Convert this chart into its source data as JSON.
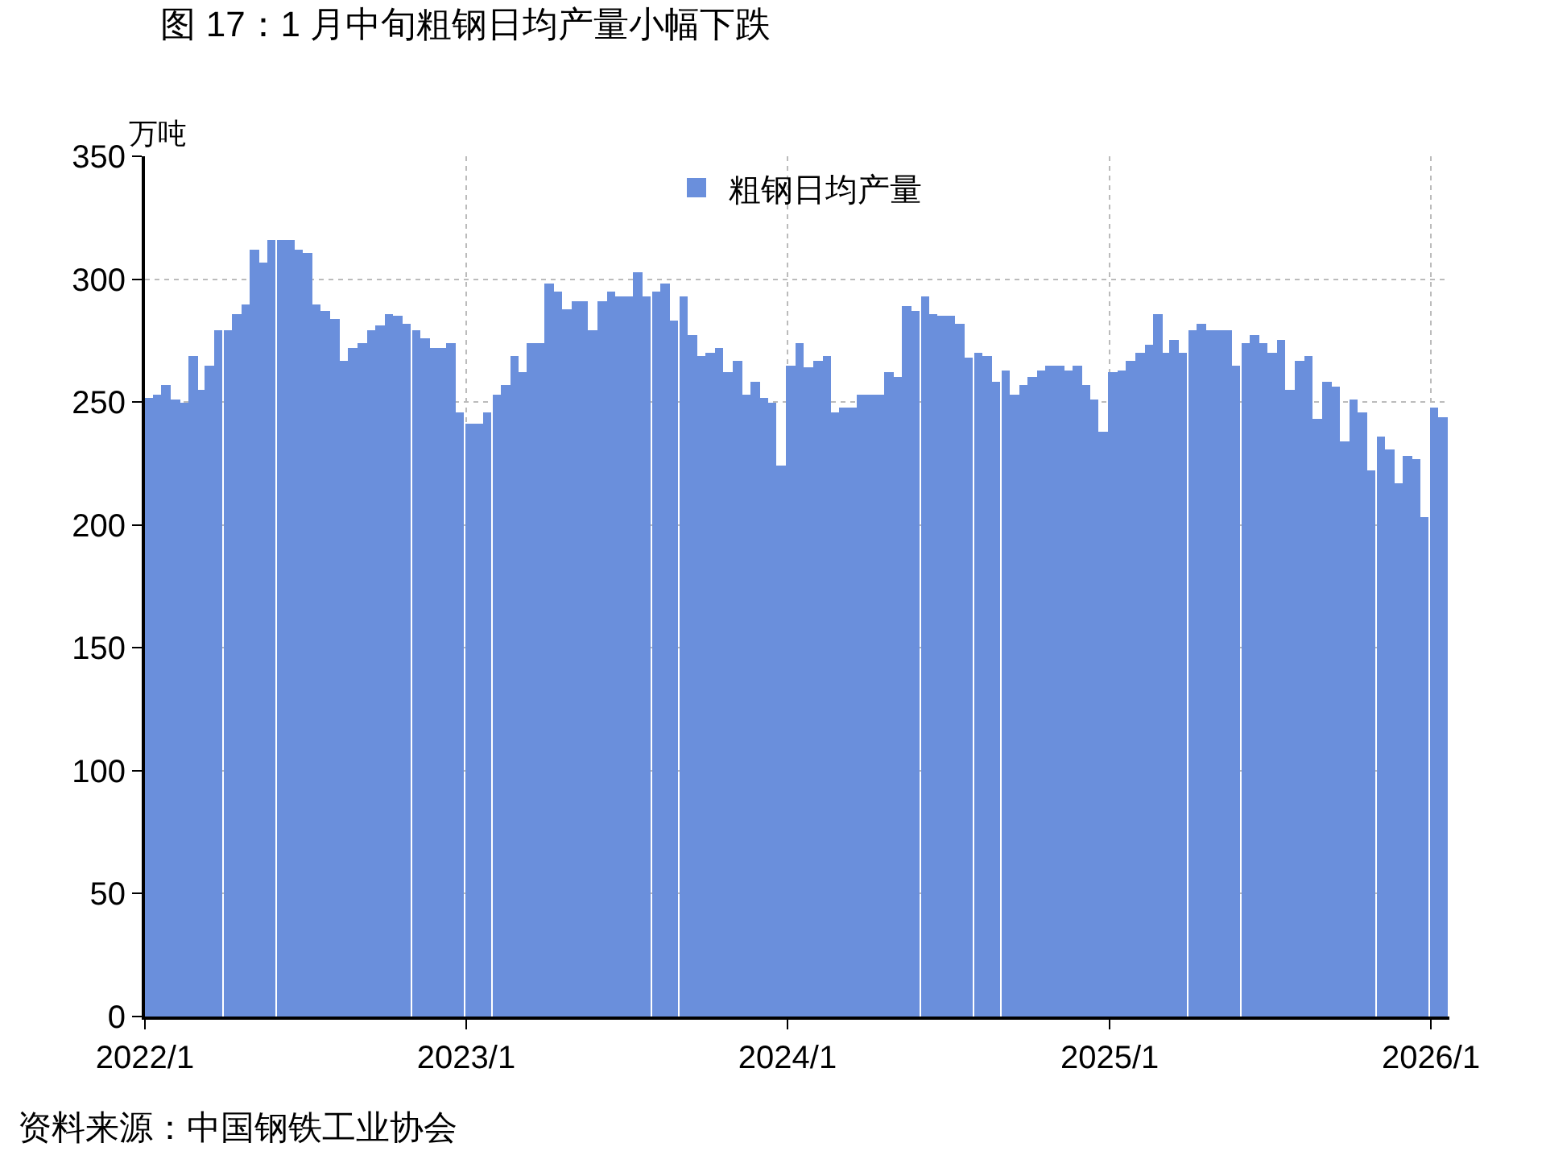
{
  "chart_data": {
    "type": "bar",
    "title": "图 17：1 月中旬粗钢日均产量小幅下跌",
    "ylabel": "万吨",
    "legend": "top",
    "grid": true,
    "annotations": [
      "资料来源：中国钢铁工业协会"
    ],
    "xlim": [
      "2022-01-01",
      "2026-01-22"
    ],
    "xticks": [
      {
        "value": "2022-01-01",
        "label": "2022/1"
      },
      {
        "value": "2023-01-01",
        "label": "2023/1"
      },
      {
        "value": "2024-01-01",
        "label": "2024/1"
      },
      {
        "value": "2025-01-01",
        "label": "2025/1"
      },
      {
        "value": "2026-01-01",
        "label": "2026/1"
      }
    ],
    "ylim": [
      0,
      350
    ],
    "yticks": [
      0,
      50,
      100,
      150,
      200,
      250,
      300,
      350
    ],
    "x": [
      "2022-01-05",
      "2022-01-15",
      "2022-01-25",
      "2022-02-05",
      "2022-02-15",
      "2022-02-25",
      "2022-03-05",
      "2022-03-15",
      "2022-03-25",
      "2022-04-05",
      "2022-04-15",
      "2022-04-25",
      "2022-05-05",
      "2022-05-15",
      "2022-05-25",
      "2022-06-05",
      "2022-06-15",
      "2022-06-25",
      "2022-07-05",
      "2022-07-15",
      "2022-07-25",
      "2022-08-05",
      "2022-08-15",
      "2022-08-25",
      "2022-09-05",
      "2022-09-15",
      "2022-09-25",
      "2022-10-05",
      "2022-10-15",
      "2022-10-25",
      "2022-11-05",
      "2022-11-15",
      "2022-11-25",
      "2022-12-05",
      "2022-12-15",
      "2022-12-25",
      "2023-01-05",
      "2023-01-15",
      "2023-01-25",
      "2023-02-05",
      "2023-02-15",
      "2023-02-25",
      "2023-03-05",
      "2023-03-15",
      "2023-03-25",
      "2023-04-05",
      "2023-04-15",
      "2023-04-25",
      "2023-05-05",
      "2023-05-15",
      "2023-05-25",
      "2023-06-05",
      "2023-06-15",
      "2023-06-25",
      "2023-07-05",
      "2023-07-15",
      "2023-07-25",
      "2023-08-05",
      "2023-08-15",
      "2023-08-25",
      "2023-09-05",
      "2023-09-15",
      "2023-09-25",
      "2023-10-05",
      "2023-10-15",
      "2023-10-25",
      "2023-11-05",
      "2023-11-15",
      "2023-11-25",
      "2023-12-05",
      "2023-12-15",
      "2023-12-25",
      "2024-01-05",
      "2024-01-15",
      "2024-01-25",
      "2024-02-05",
      "2024-02-15",
      "2024-02-25",
      "2024-03-05",
      "2024-03-15",
      "2024-03-25",
      "2024-04-05",
      "2024-04-15",
      "2024-04-25",
      "2024-05-05",
      "2024-05-15",
      "2024-05-25",
      "2024-06-05",
      "2024-06-15",
      "2024-06-25",
      "2024-07-05",
      "2024-07-15",
      "2024-07-25",
      "2024-08-05",
      "2024-08-15",
      "2024-08-25",
      "2024-09-05",
      "2024-09-15",
      "2024-09-25",
      "2024-10-05",
      "2024-10-15",
      "2024-10-25",
      "2024-11-05",
      "2024-11-15",
      "2024-11-25",
      "2024-12-05",
      "2024-12-15",
      "2024-12-25",
      "2025-01-05",
      "2025-01-15",
      "2025-01-25",
      "2025-02-05",
      "2025-02-15",
      "2025-02-25",
      "2025-03-05",
      "2025-03-15",
      "2025-03-25",
      "2025-04-05",
      "2025-04-15",
      "2025-04-25",
      "2025-05-05",
      "2025-05-15",
      "2025-05-25",
      "2025-06-05",
      "2025-06-15",
      "2025-06-25",
      "2025-07-05",
      "2025-07-15",
      "2025-07-25",
      "2025-08-05",
      "2025-08-15",
      "2025-08-25",
      "2025-09-05",
      "2025-09-15",
      "2025-09-25",
      "2025-10-05",
      "2025-10-15",
      "2025-10-25",
      "2025-11-05",
      "2025-11-15",
      "2025-11-25",
      "2025-12-05",
      "2025-12-15",
      "2025-12-25",
      "2026-01-05",
      "2026-01-15"
    ],
    "series": [
      {
        "name": "粗钢日均产量",
        "color": "#6a8fdc",
        "values": [
          252,
          253,
          257,
          251,
          250,
          269,
          255,
          265,
          279,
          279,
          286,
          290,
          312,
          307,
          316,
          316,
          316,
          312,
          311,
          290,
          287,
          284,
          267,
          272,
          274,
          279,
          281,
          286,
          285,
          282,
          279,
          276,
          272,
          272,
          274,
          246,
          241,
          241,
          246,
          253,
          257,
          269,
          262,
          274,
          274,
          298,
          295,
          288,
          291,
          291,
          279,
          291,
          295,
          293,
          293,
          303,
          293,
          295,
          298,
          283,
          293,
          277,
          269,
          270,
          272,
          262,
          267,
          253,
          258,
          252,
          250,
          224,
          265,
          274,
          264,
          267,
          269,
          246,
          248,
          248,
          253,
          253,
          253,
          262,
          260,
          289,
          287,
          293,
          286,
          285,
          285,
          282,
          268,
          270,
          269,
          258,
          263,
          253,
          257,
          260,
          263,
          265,
          265,
          263,
          265,
          257,
          251,
          238,
          262,
          263,
          267,
          270,
          273,
          286,
          270,
          275,
          270,
          279,
          282,
          279,
          279,
          279,
          265,
          274,
          277,
          274,
          270,
          275,
          255,
          267,
          269,
          243,
          258,
          256,
          234,
          251,
          246,
          222,
          236,
          231,
          217,
          228,
          227,
          203,
          248,
          244
        ]
      }
    ]
  }
}
